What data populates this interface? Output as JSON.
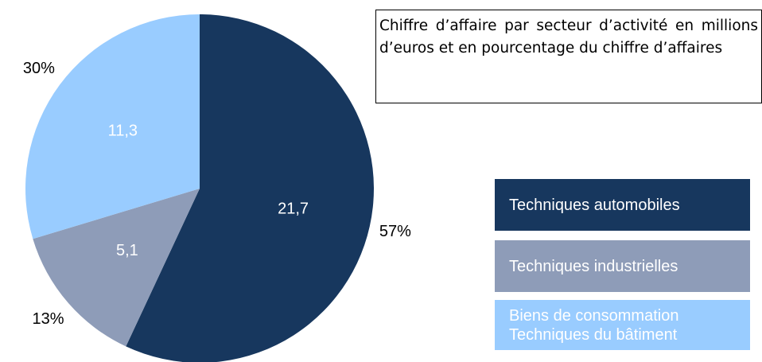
{
  "chart_data": {
    "type": "pie",
    "title": "Chiffre d’affaire par secteur d’activité en millions d’euros et en pourcentage du chiffre d’affaires",
    "categories": [
      "Techniques automobiles",
      "Techniques industrielles",
      "Biens de consommation\nTechniques du bâtiment"
    ],
    "values": [
      21.7,
      5.1,
      11.3
    ],
    "value_labels": [
      "21,7",
      "5,1",
      "11,3"
    ],
    "percentages": [
      57,
      13,
      30
    ],
    "percentage_labels": [
      "57%",
      "13%",
      "30%"
    ],
    "colors": [
      "#17375e",
      "#8e9cb8",
      "#99ccff"
    ]
  }
}
